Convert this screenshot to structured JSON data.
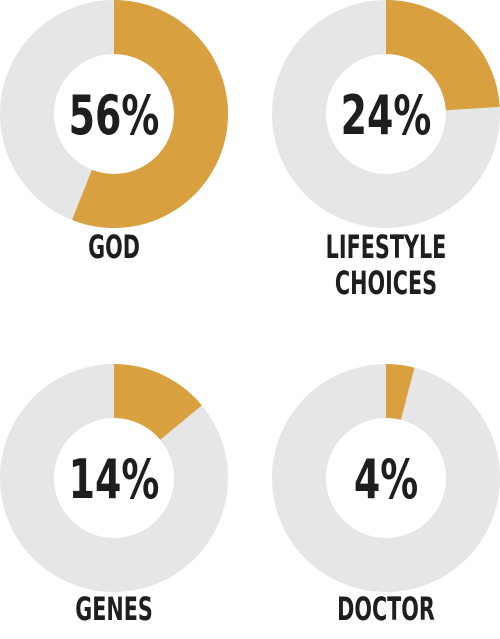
{
  "chart_data": [
    {
      "type": "pie",
      "label": "GOD",
      "value_label": "56%",
      "values": [
        56,
        44
      ],
      "categories": [
        "GOD",
        ""
      ],
      "colors": [
        "#d8a03f",
        "#e6e6e6"
      ]
    },
    {
      "type": "pie",
      "label": "LIFESTYLE CHOICES",
      "label_lines": [
        "LIFESTYLE",
        "CHOICES"
      ],
      "value_label": "24%",
      "values": [
        24,
        76
      ],
      "categories": [
        "LIFESTYLE CHOICES",
        ""
      ],
      "colors": [
        "#d8a03f",
        "#e6e6e6"
      ]
    },
    {
      "type": "pie",
      "label": "GENES",
      "value_label": "14%",
      "values": [
        14,
        86
      ],
      "categories": [
        "GENES",
        ""
      ],
      "colors": [
        "#d8a03f",
        "#e6e6e6"
      ]
    },
    {
      "type": "pie",
      "label": "DOCTOR",
      "value_label": "4%",
      "values": [
        4,
        96
      ],
      "categories": [
        "DOCTOR",
        ""
      ],
      "colors": [
        "#d8a03f",
        "#e6e6e6"
      ]
    }
  ]
}
